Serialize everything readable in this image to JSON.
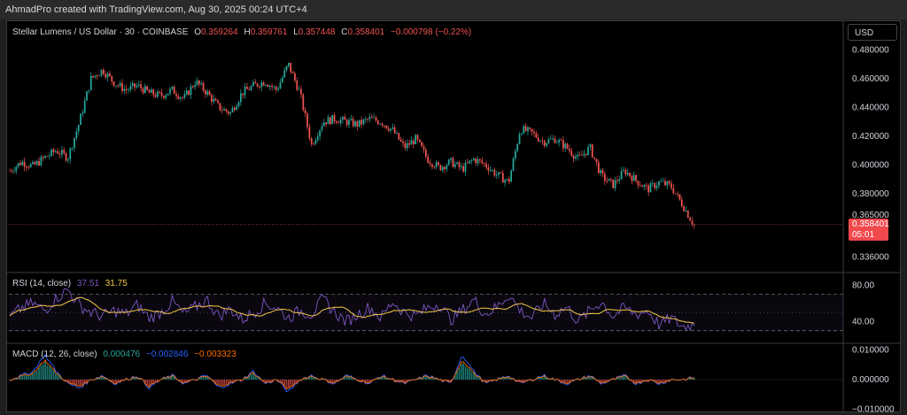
{
  "header": {
    "credit": "AhmadPro created with TradingView.com, Aug 30, 2025 00:24 UTC+4"
  },
  "symbol": {
    "name": "Stellar Lumens / US Dollar · 30 · COINBASE",
    "o_label": "O",
    "o": "0.359264",
    "h_label": "H",
    "h": "0.359761",
    "l_label": "L",
    "l": "0.357448",
    "c_label": "C",
    "c": "0.358401",
    "change": "−0.000798 (−0.22%)"
  },
  "currency_button": "USD",
  "last_price": {
    "value": "0.358401",
    "countdown": "05:01"
  },
  "colors": {
    "up": "#26a69a",
    "down": "#ef5350",
    "rsi": "#7e57c2",
    "rsi_ma": "#f7c948",
    "macd": "#2962ff",
    "signal": "#ff6d00",
    "hist_up": "#26a69a",
    "hist_down": "#ef5350"
  },
  "rsi_legend": {
    "title": "RSI (14, close)",
    "value": "37.51",
    "ma": "31.75"
  },
  "macd_legend": {
    "title": "MACD (12, 26, close)",
    "hist": "0.000476",
    "macd": "−0.002846",
    "signal": "−0.003323"
  },
  "chart_data": [
    {
      "type": "candlestick",
      "title": "Stellar Lumens / US Dollar · 30 · COINBASE",
      "y_ticks": [
        "0.480000",
        "0.460000",
        "0.440000",
        "0.420000",
        "0.400000",
        "0.380000",
        "0.365000",
        "0.336000"
      ],
      "ylim": [
        0.33,
        0.49
      ],
      "close_path": [
        0.396,
        0.402,
        0.399,
        0.405,
        0.41,
        0.405,
        0.43,
        0.46,
        0.466,
        0.457,
        0.452,
        0.455,
        0.45,
        0.448,
        0.452,
        0.446,
        0.458,
        0.45,
        0.44,
        0.436,
        0.45,
        0.455,
        0.458,
        0.452,
        0.47,
        0.45,
        0.414,
        0.43,
        0.432,
        0.43,
        0.428,
        0.432,
        0.43,
        0.424,
        0.412,
        0.418,
        0.404,
        0.398,
        0.402,
        0.397,
        0.404,
        0.4,
        0.393,
        0.388,
        0.425,
        0.422,
        0.416,
        0.418,
        0.412,
        0.404,
        0.412,
        0.392,
        0.386,
        0.396,
        0.389,
        0.383,
        0.388,
        0.385,
        0.372,
        0.358
      ]
    },
    {
      "type": "line",
      "title": "RSI (14, close)",
      "y_ticks": [
        "80.00",
        "40.00"
      ],
      "ylim": [
        20,
        90
      ],
      "band": [
        30,
        70
      ],
      "values": [
        45,
        55,
        60,
        52,
        66,
        75,
        58,
        50,
        46,
        52,
        48,
        58,
        44,
        50,
        62,
        48,
        56,
        64,
        46,
        54,
        42,
        50,
        60,
        55,
        44,
        52,
        48,
        65,
        50,
        40,
        48,
        56,
        44,
        62,
        50,
        46,
        55,
        60,
        42,
        52,
        64,
        48,
        56,
        70,
        52,
        44,
        60,
        48,
        56,
        40,
        52,
        62,
        46,
        55,
        48,
        52,
        36,
        44,
        34,
        37.5
      ]
    },
    {
      "type": "line",
      "title": "MACD (12, 26, close)",
      "y_ticks": [
        "0.010000",
        "0.000000",
        "−0.010000"
      ],
      "ylim": [
        -0.011,
        0.011
      ],
      "histogram": [
        0.0,
        0.001,
        0.002,
        0.006,
        0.002,
        -0.001,
        -0.002,
        0.0,
        0.001,
        -0.001,
        0.0,
        0.001,
        -0.002,
        0.0,
        0.001,
        -0.001,
        0.0,
        0.001,
        -0.002,
        -0.001,
        0.0,
        0.002,
        -0.001,
        0.0,
        -0.003,
        0.0,
        0.001,
        0.0,
        -0.001,
        0.001,
        0.0,
        -0.001,
        0.001,
        0.0,
        -0.001,
        0.0,
        0.001,
        0.0,
        -0.001,
        0.006,
        0.002,
        -0.001,
        0.0,
        0.001,
        -0.001,
        0.0,
        0.001,
        0.0,
        -0.001,
        0.0,
        0.001,
        -0.001,
        0.0,
        0.001,
        -0.001,
        0.0,
        -0.001,
        0.0,
        0.0,
        0.0005
      ]
    }
  ]
}
